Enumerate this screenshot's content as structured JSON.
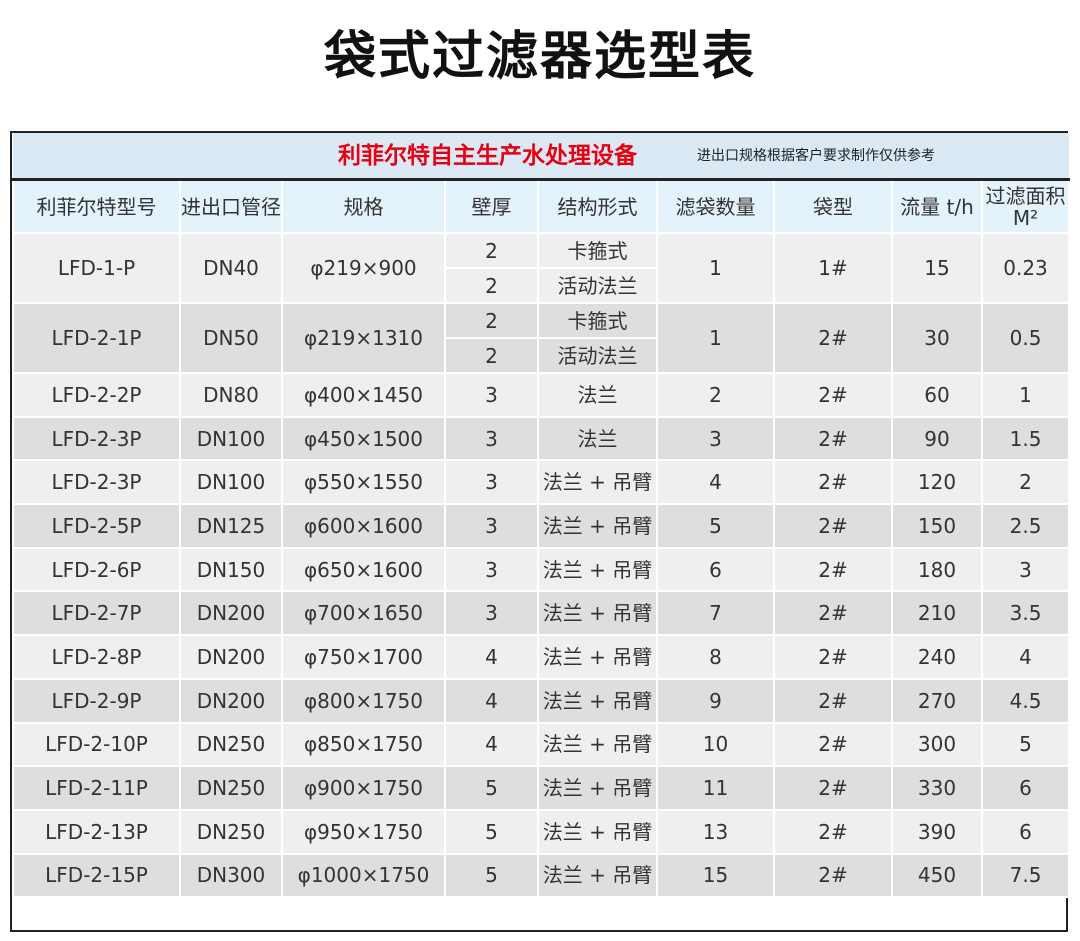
{
  "title": "袋式过滤器选型表",
  "banner": {
    "brand": "利菲尔特自主生产水处理设备",
    "note": "进出口规格根据客户要求制作仅供参考"
  },
  "headers": [
    "利菲尔特型号",
    "进出口管径",
    "规格",
    "壁厚",
    "结构形式",
    "滤袋数量",
    "袋型",
    "流量 t/h",
    "过滤面积 M²"
  ],
  "rows": [
    {
      "model": "LFD-1-P",
      "port": "DN40",
      "spec": "φ219×900",
      "variants": [
        {
          "wall": "2",
          "structure": "卡箍式"
        },
        {
          "wall": "2",
          "structure": "活动法兰"
        }
      ],
      "bags": "1",
      "bag_type": "1#",
      "flow": "15",
      "area": "0.23"
    },
    {
      "model": "LFD-2-1P",
      "port": "DN50",
      "spec": "φ219×1310",
      "variants": [
        {
          "wall": "2",
          "structure": "卡箍式"
        },
        {
          "wall": "2",
          "structure": "活动法兰"
        }
      ],
      "bags": "1",
      "bag_type": "2#",
      "flow": "30",
      "area": "0.5"
    },
    {
      "model": "LFD-2-2P",
      "port": "DN80",
      "spec": "φ400×1450",
      "wall": "3",
      "structure": "法兰",
      "bags": "2",
      "bag_type": "2#",
      "flow": "60",
      "area": "1"
    },
    {
      "model": "LFD-2-3P",
      "port": "DN100",
      "spec": "φ450×1500",
      "wall": "3",
      "structure": "法兰",
      "bags": "3",
      "bag_type": "2#",
      "flow": "90",
      "area": "1.5"
    },
    {
      "model": "LFD-2-3P",
      "port": "DN100",
      "spec": "φ550×1550",
      "wall": "3",
      "structure": "法兰 + 吊臂",
      "bags": "4",
      "bag_type": "2#",
      "flow": "120",
      "area": "2"
    },
    {
      "model": "LFD-2-5P",
      "port": "DN125",
      "spec": "φ600×1600",
      "wall": "3",
      "structure": "法兰 + 吊臂",
      "bags": "5",
      "bag_type": "2#",
      "flow": "150",
      "area": "2.5"
    },
    {
      "model": "LFD-2-6P",
      "port": "DN150",
      "spec": "φ650×1600",
      "wall": "3",
      "structure": "法兰 + 吊臂",
      "bags": "6",
      "bag_type": "2#",
      "flow": "180",
      "area": "3"
    },
    {
      "model": "LFD-2-7P",
      "port": "DN200",
      "spec": "φ700×1650",
      "wall": "3",
      "structure": "法兰 + 吊臂",
      "bags": "7",
      "bag_type": "2#",
      "flow": "210",
      "area": "3.5"
    },
    {
      "model": "LFD-2-8P",
      "port": "DN200",
      "spec": "φ750×1700",
      "wall": "4",
      "structure": "法兰 + 吊臂",
      "bags": "8",
      "bag_type": "2#",
      "flow": "240",
      "area": "4"
    },
    {
      "model": "LFD-2-9P",
      "port": "DN200",
      "spec": "φ800×1750",
      "wall": "4",
      "structure": "法兰 + 吊臂",
      "bags": "9",
      "bag_type": "2#",
      "flow": "270",
      "area": "4.5"
    },
    {
      "model": "LFD-2-10P",
      "port": "DN250",
      "spec": "φ850×1750",
      "wall": "4",
      "structure": "法兰 + 吊臂",
      "bags": "10",
      "bag_type": "2#",
      "flow": "300",
      "area": "5"
    },
    {
      "model": "LFD-2-11P",
      "port": "DN250",
      "spec": "φ900×1750",
      "wall": "5",
      "structure": "法兰 + 吊臂",
      "bags": "11",
      "bag_type": "2#",
      "flow": "330",
      "area": "6"
    },
    {
      "model": "LFD-2-13P",
      "port": "DN250",
      "spec": "φ950×1750",
      "wall": "5",
      "structure": "法兰 + 吊臂",
      "bags": "13",
      "bag_type": "2#",
      "flow": "390",
      "area": "6"
    },
    {
      "model": "LFD-2-15P",
      "port": "DN300",
      "spec": "φ1000×1750",
      "wall": "5",
      "structure": "法兰 + 吊臂",
      "bags": "15",
      "bag_type": "2#",
      "flow": "450",
      "area": "7.5"
    }
  ]
}
